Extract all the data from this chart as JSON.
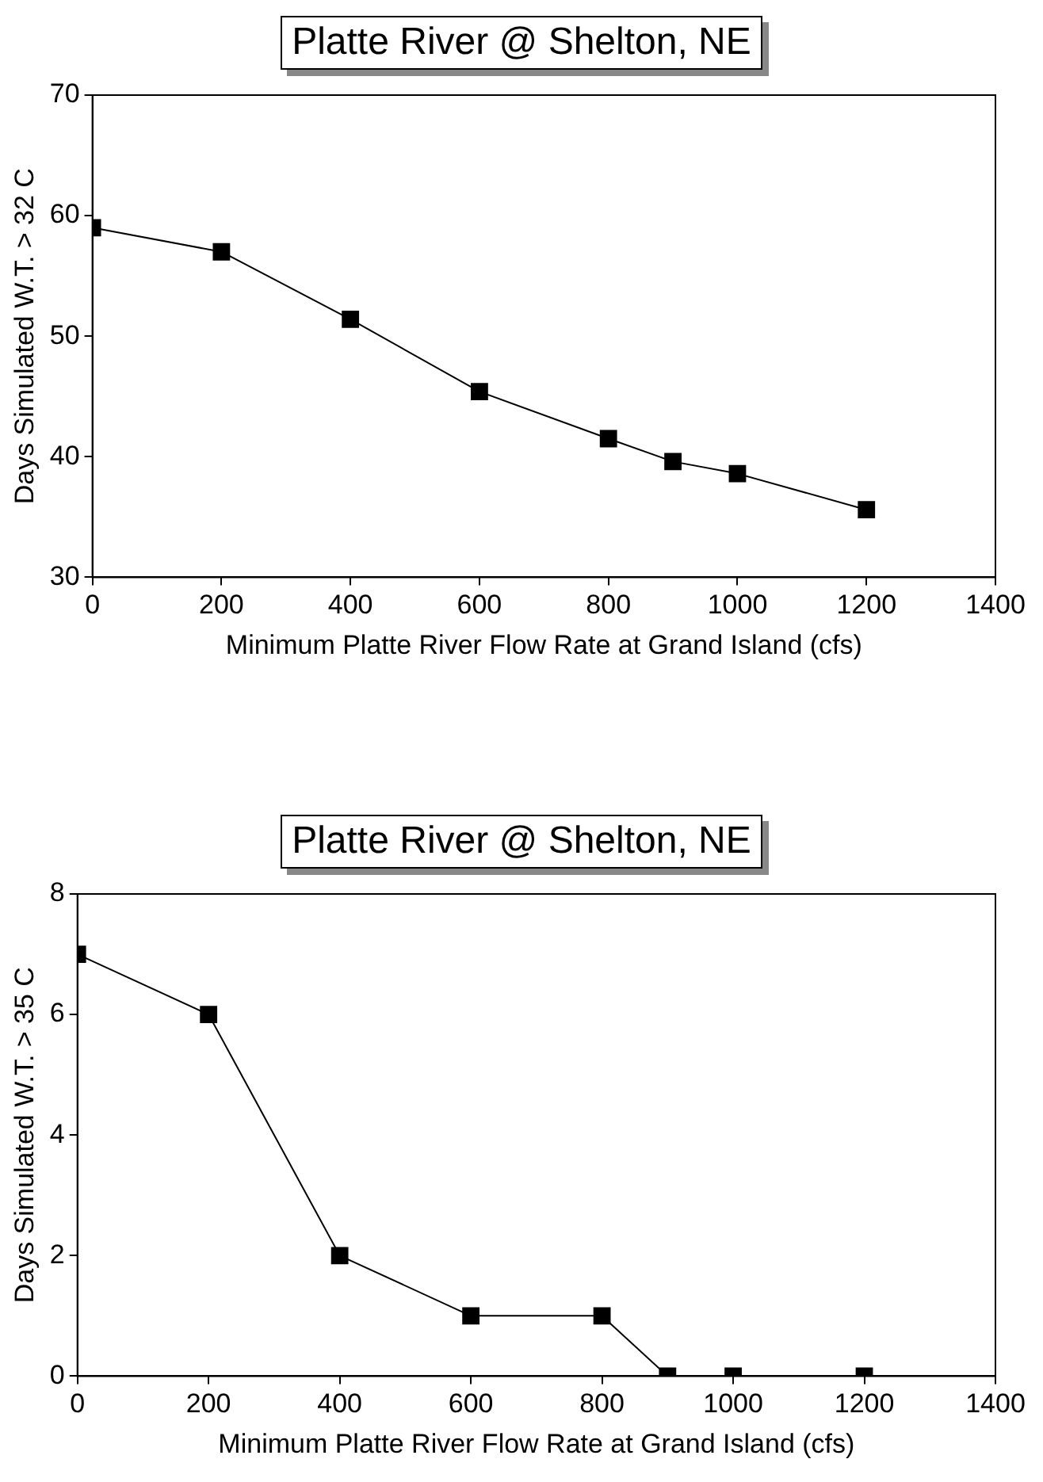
{
  "chart_data": [
    {
      "type": "line",
      "title": "Platte River @ Shelton, NE",
      "xlabel": "Minimum Platte River Flow Rate at Grand Island (cfs)",
      "ylabel": "Days Simulated W.T. > 32 C",
      "x": [
        0,
        200,
        400,
        600,
        800,
        900,
        1000,
        1200
      ],
      "series": [
        {
          "color": "#000000",
          "values": [
            59,
            57,
            51.4,
            45.4,
            41.5,
            39.6,
            38.6,
            35.6
          ]
        }
      ],
      "xlim": [
        0,
        1400
      ],
      "xticks": [
        0,
        200,
        400,
        600,
        800,
        1000,
        1200,
        1400
      ],
      "ylim": [
        30,
        70
      ],
      "yticks": [
        30,
        40,
        50,
        60,
        70
      ],
      "grid": false,
      "legend": false,
      "marker": "square",
      "line_style": "solid"
    },
    {
      "type": "line",
      "title": "Platte River @ Shelton, NE",
      "xlabel": "Minimum Platte River Flow Rate at Grand Island (cfs)",
      "ylabel": "Days Simulated W.T. > 35 C",
      "x": [
        0,
        200,
        400,
        600,
        800,
        900,
        1000,
        1200
      ],
      "series": [
        {
          "color": "#000000",
          "values": [
            7,
            6,
            2,
            1,
            1,
            0,
            0,
            0
          ]
        }
      ],
      "xlim": [
        0,
        1400
      ],
      "xticks": [
        0,
        200,
        400,
        600,
        800,
        1000,
        1200,
        1400
      ],
      "ylim": [
        0,
        8
      ],
      "yticks": [
        0,
        2,
        4,
        6,
        8
      ],
      "grid": false,
      "legend": false,
      "marker": "square",
      "line_style": "solid"
    }
  ]
}
